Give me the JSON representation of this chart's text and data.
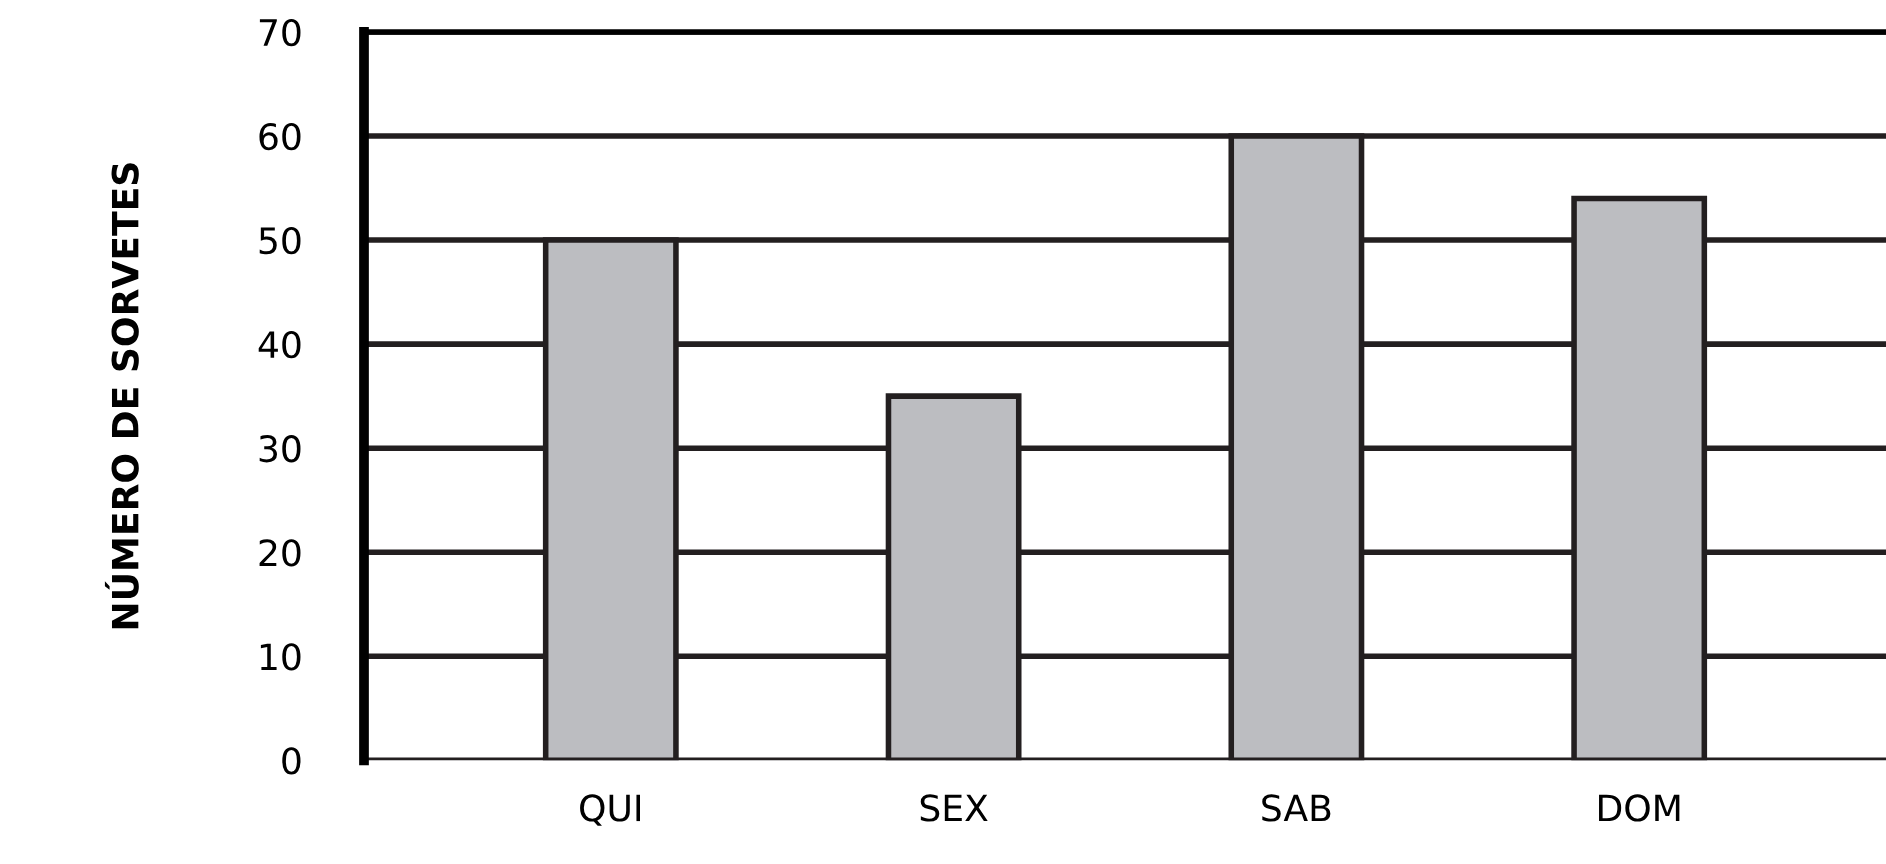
{
  "chart_data": {
    "type": "bar",
    "ylabel": "NÚMERO DE SORVETES",
    "categories": [
      "QUI",
      "SEX",
      "SAB",
      "DOM"
    ],
    "values": [
      50,
      35,
      60,
      54
    ],
    "color": "#bcbdc1",
    "ylim": [
      0,
      70
    ],
    "yticks": [
      0,
      10,
      20,
      30,
      40,
      50,
      60,
      70
    ],
    "grid": "y"
  }
}
